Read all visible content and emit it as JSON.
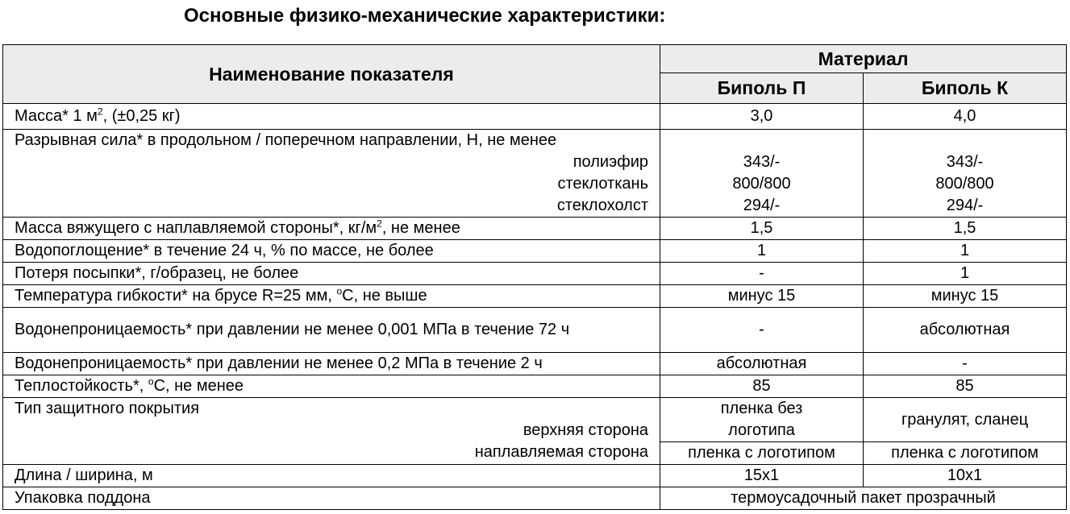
{
  "title": "Основные физико-механические характеристики:",
  "table": {
    "header": {
      "name": "Наименование показателя",
      "group": "Материал",
      "columns": [
        "Биполь П",
        "Биполь К"
      ]
    },
    "rows": [
      {
        "label": [
          "Масса* 1 м",
          "2",
          ", (±0,25 кг)"
        ],
        "values": [
          "3,0",
          "4,0"
        ]
      },
      {
        "label": "Разрывная сила* в продольном / поперечном направлении, Н, не менее",
        "sublabels": [
          "полиэфир",
          "стеклоткань",
          "стеклохолст"
        ],
        "values": [
          [
            "343/-",
            "800/800",
            "294/-"
          ],
          [
            "343/-",
            "800/800",
            "294/-"
          ]
        ]
      },
      {
        "label": [
          "Масса вяжущего с наплавляемой стороны*, кг/м",
          "2",
          ", не менее"
        ],
        "values": [
          "1,5",
          "1,5"
        ]
      },
      {
        "label": "Водопоглощение* в течение 24 ч, % по массе, не более",
        "values": [
          "1",
          "1"
        ]
      },
      {
        "label": "Потеря посыпки*, г/образец, не более",
        "values": [
          "-",
          "1"
        ]
      },
      {
        "label": [
          "Температура гибкости* на брусе R=25 мм, ",
          "o",
          "С, не выше"
        ],
        "values": [
          "минус 15",
          "минус 15"
        ]
      },
      {
        "label": "Водонепроницаемость* при давлении  не менее 0,001 МПа в течение 72 ч",
        "values": [
          "-",
          "абсолютная"
        ]
      },
      {
        "label": "Водонепроницаемость* при давлении  не менее 0,2 МПа в течение 2 ч",
        "values": [
          "абсолютная",
          "-"
        ]
      },
      {
        "label": [
          "Теплостойкость*, ",
          "o",
          "С, не менее"
        ],
        "values": [
          "85",
          "85"
        ]
      },
      {
        "label": "Тип защитного покрытия",
        "sublabels": [
          "верхняя сторона",
          "наплавляемая сторона"
        ],
        "values": [
          [
            "пленка без логотипа",
            "пленка с логотипом"
          ],
          [
            "гранулят, сланец",
            "пленка с логотипом"
          ]
        ]
      },
      {
        "label": "Длина / ширина, м",
        "values": [
          "15х1",
          "10х1"
        ]
      },
      {
        "label": "Упаковка поддона",
        "value": "термоусадочный пакет прозрачный"
      }
    ]
  }
}
